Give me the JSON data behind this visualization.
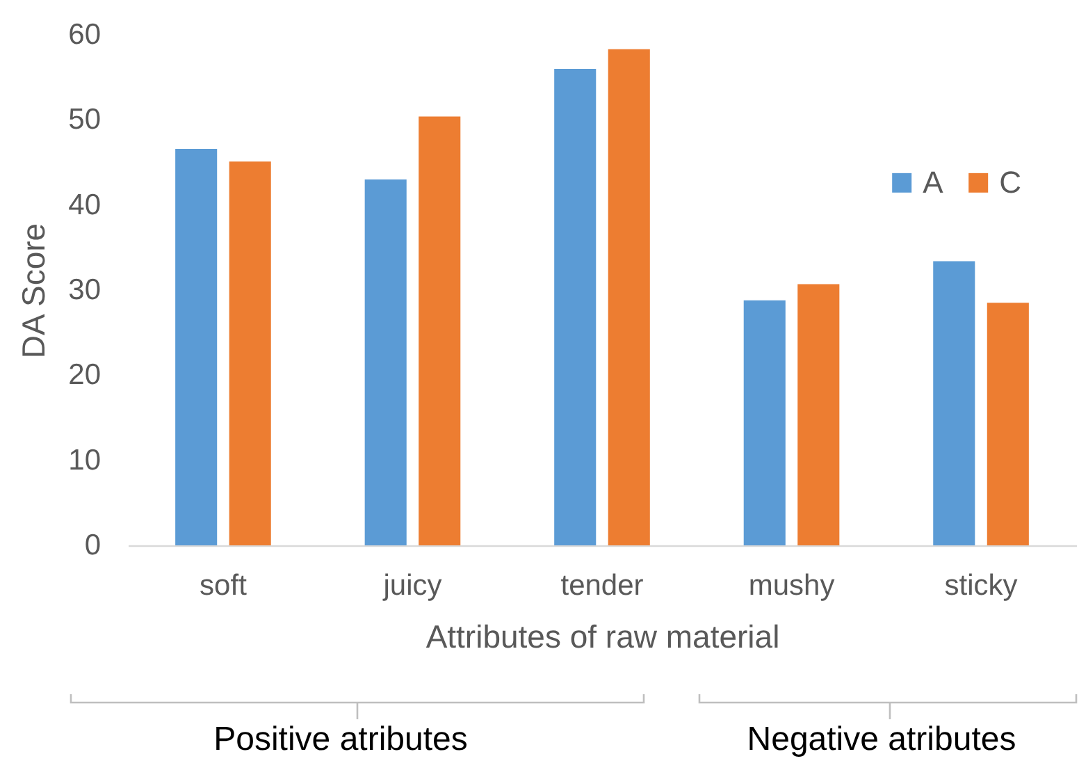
{
  "chart_data": {
    "type": "bar",
    "xlabel": "Attributes of raw material",
    "ylabel": "DA Score",
    "categories": [
      "soft",
      "juicy",
      "tender",
      "mushy",
      "sticky"
    ],
    "series": [
      {
        "name": "A",
        "color": "#5b9bd5",
        "values": [
          46.6,
          43.0,
          56.0,
          28.8,
          33.4
        ]
      },
      {
        "name": "C",
        "color": "#ed7d31",
        "values": [
          45.1,
          50.4,
          58.3,
          30.7,
          28.5
        ]
      }
    ],
    "ylim": [
      0,
      60
    ],
    "yticks": [
      0,
      10,
      20,
      30,
      40,
      50,
      60
    ],
    "grid": false,
    "legend": "top right",
    "annotations": [
      "Positive atributes",
      "Negative atributes"
    ]
  }
}
